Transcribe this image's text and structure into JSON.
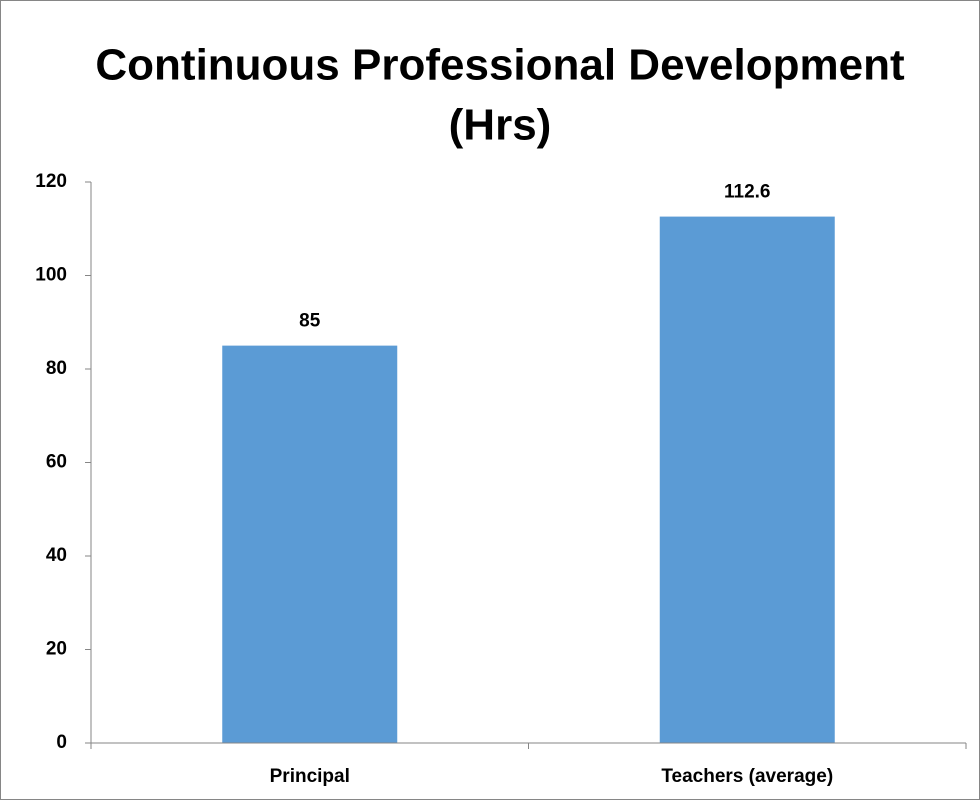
{
  "chart_data": {
    "type": "bar",
    "title": [
      "Continuous Professional Development",
      "(Hrs)"
    ],
    "categories": [
      "Principal",
      "Teachers (average)"
    ],
    "values": [
      85,
      112.6
    ],
    "color": "#5b9bd5",
    "ylim": [
      0,
      120
    ],
    "yticks": [
      0,
      20,
      40,
      60,
      80,
      100,
      120
    ],
    "grid": false
  }
}
